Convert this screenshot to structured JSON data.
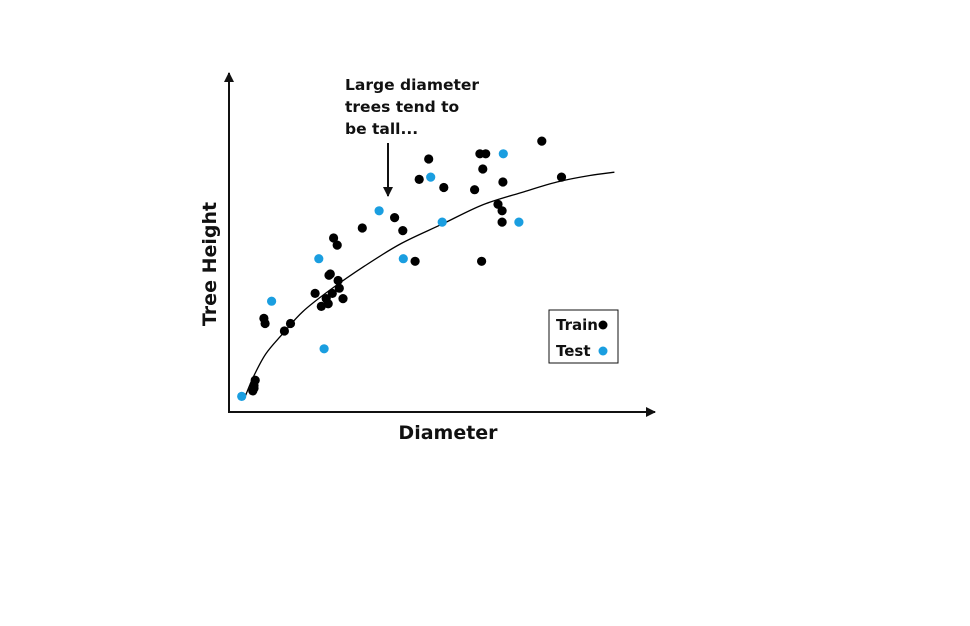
{
  "chart_data": {
    "type": "scatter",
    "title": "",
    "xlabel": "Diameter",
    "ylabel": "Tree Height",
    "xlim": [
      0,
      100
    ],
    "ylim": [
      0,
      100
    ],
    "grid": false,
    "legend_position": "bottom-right",
    "annotation": {
      "lines": [
        "Large diameter",
        "trees tend to",
        "be tall..."
      ],
      "points_to": [
        37.5,
        58
      ]
    },
    "fit_curve": {
      "name": "",
      "x": [
        4,
        6,
        9,
        13,
        18,
        25,
        33,
        42,
        52,
        62,
        72,
        80,
        88,
        94
      ],
      "y": [
        5,
        11,
        18,
        24,
        31,
        38,
        45,
        52,
        58,
        64,
        68,
        71,
        73,
        74
      ]
    },
    "series": [
      {
        "name": "Train",
        "color": "#000000",
        "points": [
          [
            5.8,
            6.5
          ],
          [
            6.1,
            7.3
          ],
          [
            6.1,
            8.2
          ],
          [
            6.4,
            9.8
          ],
          [
            8.5,
            28.9
          ],
          [
            8.8,
            27.3
          ],
          [
            13.5,
            25.0
          ],
          [
            15.0,
            27.3
          ],
          [
            21.0,
            36.6
          ],
          [
            22.5,
            32.6
          ],
          [
            23.7,
            35.0
          ],
          [
            24.2,
            33.4
          ],
          [
            24.4,
            42.2
          ],
          [
            24.7,
            42.6
          ],
          [
            25.2,
            36.6
          ],
          [
            25.5,
            53.7
          ],
          [
            26.4,
            51.5
          ],
          [
            26.6,
            40.6
          ],
          [
            26.9,
            38.2
          ],
          [
            27.8,
            35.0
          ],
          [
            32.5,
            56.8
          ],
          [
            40.4,
            60.0
          ],
          [
            42.4,
            56.0
          ],
          [
            45.4,
            46.5
          ],
          [
            46.4,
            71.8
          ],
          [
            48.7,
            78.1
          ],
          [
            52.4,
            69.3
          ],
          [
            59.9,
            68.6
          ],
          [
            61.2,
            79.7
          ],
          [
            61.6,
            46.5
          ],
          [
            61.9,
            75.0
          ],
          [
            62.6,
            79.7
          ],
          [
            65.6,
            64.1
          ],
          [
            66.6,
            58.6
          ],
          [
            66.6,
            62.1
          ],
          [
            66.8,
            71.0
          ],
          [
            76.3,
            83.6
          ],
          [
            81.1,
            72.5
          ]
        ]
      },
      {
        "name": "Test",
        "color": "#1a9ee0",
        "points": [
          [
            3.1,
            4.8
          ],
          [
            10.4,
            34.2
          ],
          [
            21.9,
            47.3
          ],
          [
            23.2,
            19.5
          ],
          [
            36.6,
            62.1
          ],
          [
            42.5,
            47.3
          ],
          [
            49.2,
            72.5
          ],
          [
            52.0,
            58.6
          ],
          [
            66.9,
            79.7
          ],
          [
            70.7,
            58.6
          ]
        ]
      }
    ]
  }
}
